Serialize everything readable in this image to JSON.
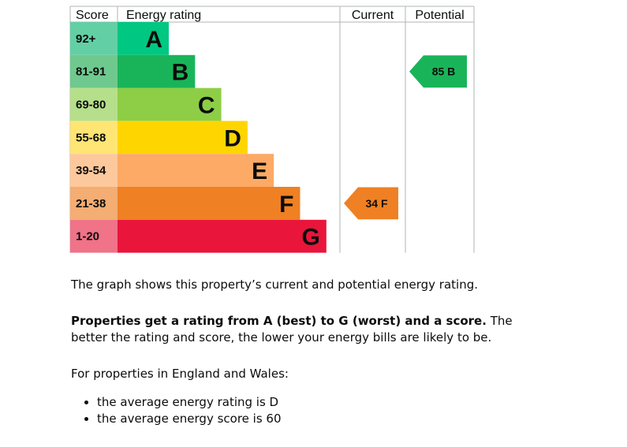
{
  "chart_data": {
    "type": "table",
    "headers": {
      "score": "Score",
      "rating": "Energy rating",
      "current": "Current",
      "potential": "Potential"
    },
    "bands": [
      {
        "range": "92+",
        "letter": "A",
        "min": 92,
        "max": null,
        "color": "#00c781",
        "score_color": "#63cfa5"
      },
      {
        "range": "81-91",
        "letter": "B",
        "min": 81,
        "max": 91,
        "color": "#19b459",
        "score_color": "#6fc98e"
      },
      {
        "range": "69-80",
        "letter": "C",
        "min": 69,
        "max": 80,
        "color": "#8dce46",
        "score_color": "#b6df8b"
      },
      {
        "range": "55-68",
        "letter": "D",
        "min": 55,
        "max": 68,
        "color": "#ffd500",
        "score_color": "#ffe574"
      },
      {
        "range": "39-54",
        "letter": "E",
        "min": 39,
        "max": 54,
        "color": "#fcaa65",
        "score_color": "#fdc89b"
      },
      {
        "range": "21-38",
        "letter": "F",
        "min": 21,
        "max": 38,
        "color": "#ef8023",
        "score_color": "#f4ad72"
      },
      {
        "range": "1-20",
        "letter": "G",
        "min": 1,
        "max": 20,
        "color": "#e9153b",
        "score_color": "#f07388"
      }
    ],
    "current": {
      "score": 34,
      "letter": "F",
      "label": "34 F"
    },
    "potential": {
      "score": 85,
      "letter": "B",
      "label": "85 B"
    }
  },
  "text": {
    "intro": "The graph shows this property’s current and potential energy rating.",
    "rating_strong": "Properties get a rating from A (best) to G (worst) and a score.",
    "rating_rest": " The better the rating and score, the lower your energy bills are likely to be.",
    "england_intro": "For properties in England and Wales:",
    "average_items": [
      "the average energy rating is D",
      "the average energy score is 60"
    ]
  }
}
